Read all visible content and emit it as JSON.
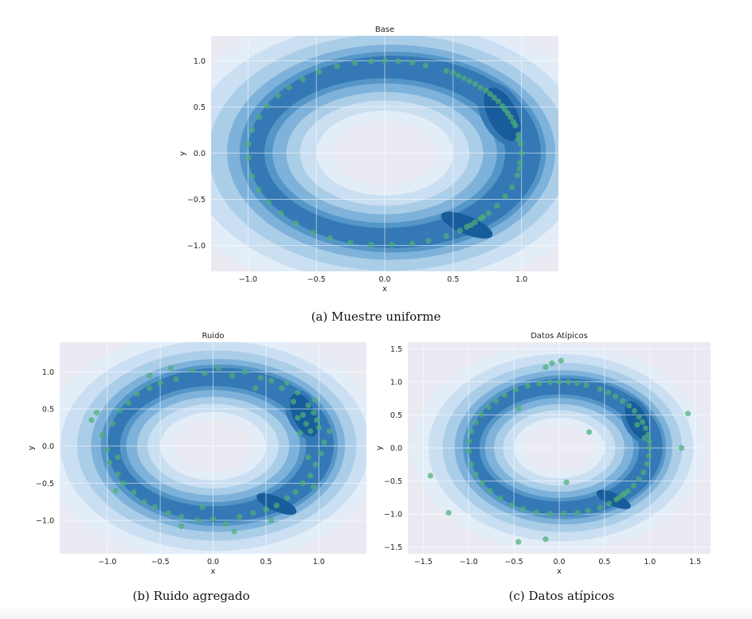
{
  "chart_data": [
    {
      "type": "scatter",
      "overlay": "kde-contour",
      "title": "Base",
      "xlabel": "x",
      "ylabel": "y",
      "xlim": [
        -1.27,
        1.27
      ],
      "ylim": [
        -1.28,
        1.27
      ],
      "xticks": [
        -1.0,
        -0.5,
        0.0,
        0.5,
        1.0
      ],
      "yticks": [
        -1.0,
        -0.5,
        0.0,
        0.5,
        1.0
      ],
      "xtick_labels": [
        "−1.0",
        "−0.5",
        "0.0",
        "0.5",
        "1.0"
      ],
      "ytick_labels": [
        "−1.0",
        "−0.5",
        "0.0",
        "0.5",
        "1.0"
      ],
      "caption": "(a) Muestre uniforme",
      "grid": true,
      "point_color": "#4fae78",
      "colormap": "Blues",
      "points": [
        [
          1.0,
          0.0
        ],
        [
          0.995,
          0.1
        ],
        [
          0.98,
          0.2
        ],
        [
          0.955,
          0.3
        ],
        [
          0.92,
          0.39
        ],
        [
          0.88,
          0.47
        ],
        [
          0.83,
          0.56
        ],
        [
          0.77,
          0.64
        ],
        [
          0.7,
          0.71
        ],
        [
          0.62,
          0.78
        ],
        [
          0.54,
          0.84
        ],
        [
          0.45,
          0.89
        ],
        [
          0.99,
          -0.1
        ],
        [
          0.975,
          0.15
        ],
        [
          0.94,
          0.34
        ],
        [
          0.9,
          0.43
        ],
        [
          0.86,
          0.51
        ],
        [
          0.8,
          0.6
        ],
        [
          0.74,
          0.68
        ],
        [
          0.66,
          0.75
        ],
        [
          0.58,
          0.81
        ],
        [
          0.5,
          0.87
        ],
        [
          0.3,
          0.95
        ],
        [
          0.2,
          0.98
        ],
        [
          0.1,
          0.995
        ],
        [
          0.0,
          1.0
        ],
        [
          -0.1,
          0.995
        ],
        [
          -0.22,
          0.975
        ],
        [
          -0.35,
          0.94
        ],
        [
          -0.48,
          0.88
        ],
        [
          -0.6,
          0.8
        ],
        [
          -0.7,
          0.71
        ],
        [
          -0.78,
          0.62
        ],
        [
          -0.86,
          0.51
        ],
        [
          -0.92,
          0.39
        ],
        [
          -0.97,
          0.25
        ],
        [
          -0.995,
          0.1
        ],
        [
          -0.995,
          -0.05
        ],
        [
          -0.97,
          -0.25
        ],
        [
          -0.92,
          -0.4
        ],
        [
          -0.85,
          -0.53
        ],
        [
          -0.76,
          -0.65
        ],
        [
          -0.65,
          -0.76
        ],
        [
          -0.52,
          -0.86
        ],
        [
          -0.4,
          -0.92
        ],
        [
          -0.25,
          -0.97
        ],
        [
          -0.1,
          -0.995
        ],
        [
          0.05,
          -0.99
        ],
        [
          0.2,
          -0.98
        ],
        [
          0.32,
          -0.95
        ],
        [
          0.45,
          -0.9
        ],
        [
          0.55,
          -0.84
        ],
        [
          0.63,
          -0.78
        ],
        [
          0.7,
          -0.71
        ],
        [
          0.76,
          -0.65
        ],
        [
          0.82,
          -0.57
        ],
        [
          0.88,
          -0.47
        ],
        [
          0.93,
          -0.37
        ],
        [
          0.97,
          -0.24
        ],
        [
          0.985,
          -0.17
        ],
        [
          0.6,
          -0.8
        ],
        [
          0.66,
          -0.75
        ],
        [
          0.72,
          -0.69
        ]
      ]
    },
    {
      "type": "scatter",
      "overlay": "kde-contour",
      "title": "Ruido",
      "xlabel": "x",
      "ylabel": "y",
      "xlim": [
        -1.45,
        1.45
      ],
      "ylim": [
        -1.45,
        1.4
      ],
      "xticks": [
        -1.0,
        -0.5,
        0.0,
        0.5,
        1.0
      ],
      "yticks": [
        -1.0,
        -0.5,
        0.0,
        0.5,
        1.0
      ],
      "xtick_labels": [
        "−1.0",
        "−0.5",
        "0.0",
        "0.5",
        "1.0"
      ],
      "ytick_labels": [
        "−1.0",
        "−0.5",
        "0.0",
        "0.5",
        "1.0"
      ],
      "caption": "(b) Ruido agregado",
      "grid": true,
      "point_color": "#4fae78",
      "colormap": "Blues",
      "points": [
        [
          1.05,
          0.05
        ],
        [
          0.92,
          0.2
        ],
        [
          0.98,
          0.35
        ],
        [
          0.85,
          0.42
        ],
        [
          0.9,
          0.55
        ],
        [
          0.76,
          0.6
        ],
        [
          0.8,
          0.72
        ],
        [
          0.65,
          0.78
        ],
        [
          0.55,
          0.88
        ],
        [
          0.45,
          0.92
        ],
        [
          0.3,
          1.0
        ],
        [
          0.18,
          0.95
        ],
        [
          0.05,
          1.05
        ],
        [
          -0.08,
          0.98
        ],
        [
          -0.2,
          1.02
        ],
        [
          -0.35,
          0.9
        ],
        [
          -0.5,
          0.85
        ],
        [
          -0.6,
          0.78
        ],
        [
          -0.72,
          0.7
        ],
        [
          -0.8,
          0.58
        ],
        [
          -0.88,
          0.48
        ],
        [
          -0.95,
          0.3
        ],
        [
          -1.05,
          0.15
        ],
        [
          -1.0,
          -0.05
        ],
        [
          -0.98,
          -0.22
        ],
        [
          -0.9,
          -0.38
        ],
        [
          -0.85,
          -0.5
        ],
        [
          -0.75,
          -0.62
        ],
        [
          -0.65,
          -0.75
        ],
        [
          -0.55,
          -0.82
        ],
        [
          -0.42,
          -0.9
        ],
        [
          -0.3,
          -0.95
        ],
        [
          -0.15,
          -1.0
        ],
        [
          0.0,
          -0.98
        ],
        [
          0.12,
          -1.05
        ],
        [
          0.25,
          -0.95
        ],
        [
          0.38,
          -0.9
        ],
        [
          0.5,
          -0.85
        ],
        [
          0.6,
          -0.8
        ],
        [
          0.7,
          -0.7
        ],
        [
          0.78,
          -0.62
        ],
        [
          0.85,
          -0.5
        ],
        [
          0.92,
          -0.4
        ],
        [
          0.97,
          -0.25
        ],
        [
          1.02,
          -0.1
        ],
        [
          1.1,
          0.2
        ],
        [
          0.95,
          0.45
        ],
        [
          0.88,
          0.3
        ],
        [
          0.82,
          0.18
        ],
        [
          0.96,
          0.62
        ],
        [
          0.7,
          0.85
        ],
        [
          -1.1,
          0.45
        ],
        [
          -1.15,
          0.35
        ],
        [
          -0.9,
          -0.15
        ],
        [
          -0.92,
          -0.6
        ],
        [
          0.2,
          -1.15
        ],
        [
          -0.1,
          -0.82
        ],
        [
          0.4,
          0.78
        ],
        [
          -0.4,
          1.05
        ],
        [
          0.95,
          -0.55
        ],
        [
          0.8,
          0.38
        ],
        [
          1.0,
          0.25
        ],
        [
          0.9,
          -0.15
        ],
        [
          -0.6,
          0.95
        ],
        [
          -0.3,
          -1.08
        ],
        [
          0.55,
          -1.0
        ]
      ]
    },
    {
      "type": "scatter",
      "overlay": "kde-contour",
      "title": "Datos Atípicos",
      "xlabel": "x",
      "ylabel": "y",
      "xlim": [
        -1.67,
        1.67
      ],
      "ylim": [
        -1.6,
        1.6
      ],
      "xticks": [
        -1.5,
        -1.0,
        -0.5,
        0.0,
        0.5,
        1.0,
        1.5
      ],
      "yticks": [
        -1.5,
        -1.0,
        -0.5,
        0.0,
        0.5,
        1.0,
        1.5
      ],
      "xtick_labels": [
        "−1.5",
        "−1.0",
        "−0.5",
        "0.0",
        "0.5",
        "1.0",
        "1.5"
      ],
      "ytick_labels": [
        "−1.5",
        "−1.0",
        "−0.5",
        "0.0",
        "0.5",
        "1.0",
        "1.5"
      ],
      "caption": "(c) Datos atípicos",
      "grid": true,
      "point_color": "#4fae78",
      "colormap": "Blues",
      "points": [
        [
          1.0,
          0.0
        ],
        [
          0.995,
          0.1
        ],
        [
          0.98,
          0.2
        ],
        [
          0.955,
          0.3
        ],
        [
          0.92,
          0.39
        ],
        [
          0.88,
          0.47
        ],
        [
          0.83,
          0.56
        ],
        [
          0.77,
          0.64
        ],
        [
          0.7,
          0.71
        ],
        [
          0.62,
          0.78
        ],
        [
          0.54,
          0.84
        ],
        [
          0.45,
          0.89
        ],
        [
          0.3,
          0.95
        ],
        [
          0.2,
          0.98
        ],
        [
          0.1,
          0.995
        ],
        [
          0.0,
          1.0
        ],
        [
          -0.1,
          0.995
        ],
        [
          -0.22,
          0.975
        ],
        [
          -0.35,
          0.94
        ],
        [
          -0.48,
          0.88
        ],
        [
          -0.6,
          0.8
        ],
        [
          -0.7,
          0.71
        ],
        [
          -0.78,
          0.62
        ],
        [
          -0.86,
          0.51
        ],
        [
          -0.92,
          0.39
        ],
        [
          -0.97,
          0.25
        ],
        [
          -0.995,
          0.1
        ],
        [
          -0.995,
          -0.05
        ],
        [
          -0.97,
          -0.25
        ],
        [
          -0.92,
          -0.4
        ],
        [
          -0.85,
          -0.53
        ],
        [
          -0.76,
          -0.65
        ],
        [
          -0.65,
          -0.76
        ],
        [
          -0.52,
          -0.86
        ],
        [
          -0.4,
          -0.92
        ],
        [
          -0.25,
          -0.97
        ],
        [
          -0.1,
          -0.995
        ],
        [
          0.05,
          -0.99
        ],
        [
          0.2,
          -0.98
        ],
        [
          0.32,
          -0.95
        ],
        [
          0.45,
          -0.9
        ],
        [
          0.55,
          -0.84
        ],
        [
          0.63,
          -0.78
        ],
        [
          0.7,
          -0.71
        ],
        [
          0.76,
          -0.65
        ],
        [
          0.82,
          -0.57
        ],
        [
          0.88,
          -0.47
        ],
        [
          0.93,
          -0.37
        ],
        [
          0.97,
          -0.24
        ],
        [
          0.99,
          -0.12
        ],
        [
          0.66,
          -0.75
        ],
        [
          0.72,
          -0.69
        ],
        [
          0.86,
          0.35
        ],
        [
          0.94,
          0.15
        ],
        [
          -1.42,
          -0.42
        ],
        [
          -1.22,
          -0.98
        ],
        [
          -0.45,
          -1.42
        ],
        [
          -0.15,
          -1.38
        ],
        [
          0.08,
          -0.52
        ],
        [
          0.33,
          0.24
        ],
        [
          -0.15,
          1.22
        ],
        [
          -0.08,
          1.28
        ],
        [
          0.02,
          1.32
        ],
        [
          1.35,
          0.0
        ],
        [
          1.42,
          0.52
        ],
        [
          -0.45,
          0.6
        ]
      ]
    }
  ]
}
